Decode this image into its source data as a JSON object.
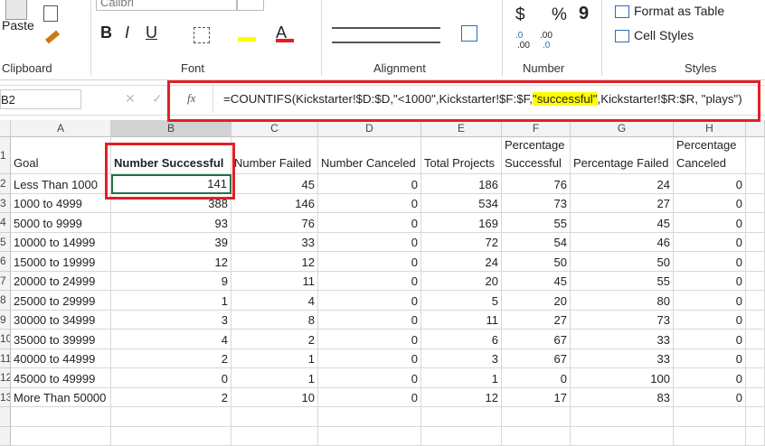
{
  "ribbon": {
    "paste": "Paste",
    "font_name": "Calibri",
    "bold": "B",
    "italic": "I",
    "underline": "U",
    "currency": "$",
    "percent": "%",
    "comma": "9",
    "inc_decimal": ".0",
    "inc_decimal_b": ".00",
    "dec_decimal": ".00",
    "dec_decimal_b": ".0",
    "format_as_table": "Format as Table",
    "cell_styles": "Cell Styles",
    "groups": [
      "Clipboard",
      "Font",
      "Alignment",
      "Number",
      "Styles"
    ]
  },
  "formula_bar": {
    "name_box": "B2",
    "fx": "fx",
    "formula_parts": [
      "=COUNTIFS(Kickstarter!$D:$D,\"<1000\",Kickstarter!$F:$F,",
      "\"successful\"",
      ",Kickstarter!$R:$R, \"plays\")"
    ]
  },
  "sheet": {
    "columns": [
      "A",
      "B",
      "C",
      "D",
      "E",
      "F",
      "G",
      "H"
    ],
    "row_numbers": [
      "1",
      "2",
      "3",
      "4",
      "5",
      "6",
      "7",
      "8",
      "9",
      "10",
      "11",
      "12",
      "13"
    ],
    "headers": [
      "Goal",
      "Number Successful",
      "Number Failed",
      "Number Canceled",
      "Total Projects",
      "Percentage Successful",
      "Percentage Failed",
      "Percentage Canceled"
    ],
    "rows": [
      [
        "Less Than 1000",
        141,
        45,
        0,
        186,
        76,
        24,
        0
      ],
      [
        "1000 to 4999",
        388,
        146,
        0,
        534,
        73,
        27,
        0
      ],
      [
        "5000 to 9999",
        93,
        76,
        0,
        169,
        55,
        45,
        0
      ],
      [
        "10000 to 14999",
        39,
        33,
        0,
        72,
        54,
        46,
        0
      ],
      [
        "15000 to 19999",
        12,
        12,
        0,
        24,
        50,
        50,
        0
      ],
      [
        "20000 to 24999",
        9,
        11,
        0,
        20,
        45,
        55,
        0
      ],
      [
        "25000 to 29999",
        1,
        4,
        0,
        5,
        20,
        80,
        0
      ],
      [
        "30000 to 34999",
        3,
        8,
        0,
        11,
        27,
        73,
        0
      ],
      [
        "35000 to 39999",
        4,
        2,
        0,
        6,
        67,
        33,
        0
      ],
      [
        "40000 to 44999",
        2,
        1,
        0,
        3,
        67,
        33,
        0
      ],
      [
        "45000 to 49999",
        0,
        1,
        0,
        1,
        0,
        100,
        0
      ],
      [
        "More Than 50000",
        2,
        10,
        0,
        12,
        17,
        83,
        0
      ]
    ]
  }
}
